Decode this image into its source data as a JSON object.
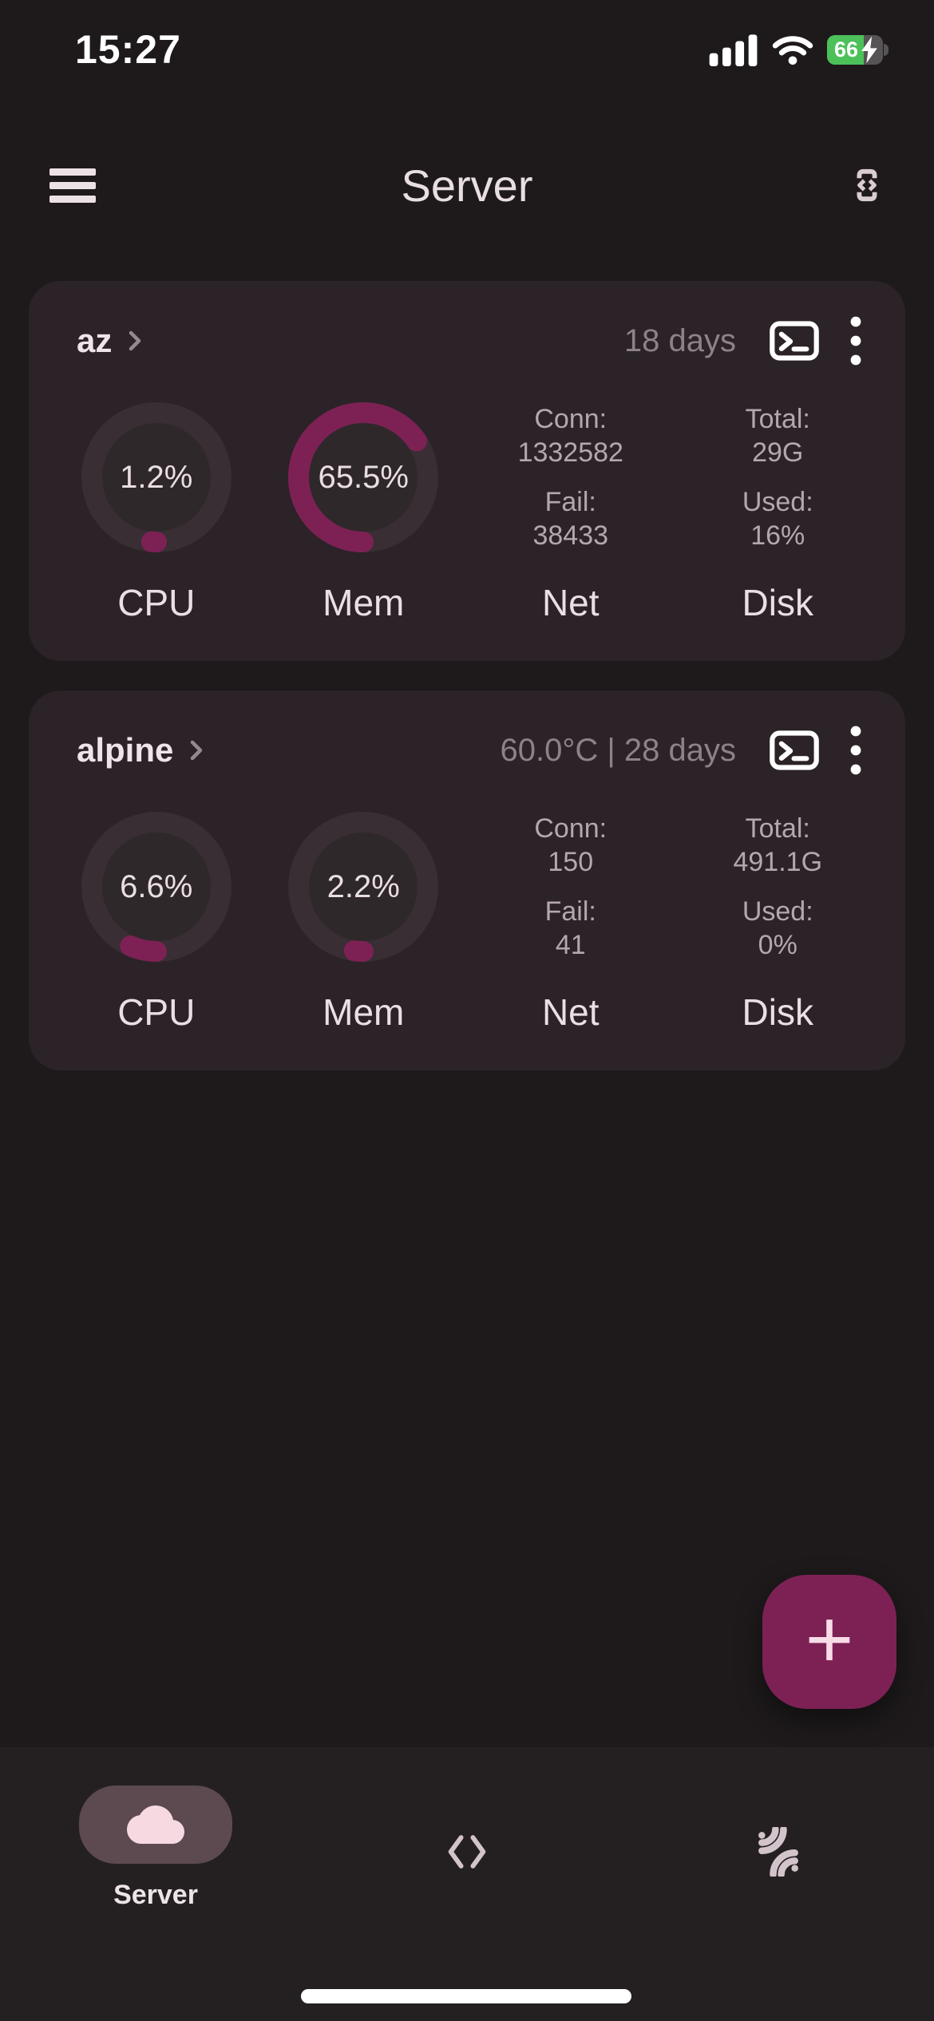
{
  "colors": {
    "accent": "#7d2155",
    "gauge_track": "#382e33",
    "gauge_inner": "#2f282b",
    "battery_green": "#4cc15a"
  },
  "status_bar": {
    "time": "15:27",
    "battery_level": "66"
  },
  "app_bar": {
    "title": "Server"
  },
  "servers": [
    {
      "name": "az",
      "meta": "18 days",
      "cpu": {
        "label": "CPU",
        "value": "1.2%",
        "percent": 1.2
      },
      "mem": {
        "label": "Mem",
        "value": "65.5%",
        "percent": 65.5
      },
      "net": {
        "label": "Net",
        "rows": [
          {
            "k": "Conn:",
            "v": "1332582"
          },
          {
            "k": "Fail:",
            "v": "38433"
          }
        ]
      },
      "disk": {
        "label": "Disk",
        "rows": [
          {
            "k": "Total:",
            "v": "29G"
          },
          {
            "k": "Used:",
            "v": "16%"
          }
        ]
      }
    },
    {
      "name": "alpine",
      "meta": "60.0°C | 28 days",
      "cpu": {
        "label": "CPU",
        "value": "6.6%",
        "percent": 6.6
      },
      "mem": {
        "label": "Mem",
        "value": "2.2%",
        "percent": 2.2
      },
      "net": {
        "label": "Net",
        "rows": [
          {
            "k": "Conn:",
            "v": "150"
          },
          {
            "k": "Fail:",
            "v": "41"
          }
        ]
      },
      "disk": {
        "label": "Disk",
        "rows": [
          {
            "k": "Total:",
            "v": "491.1G"
          },
          {
            "k": "Used:",
            "v": "0%"
          }
        ]
      }
    }
  ],
  "fab": {
    "label": "+"
  },
  "bottom_nav": {
    "items": [
      {
        "label": "Server",
        "icon": "cloud"
      },
      {
        "icon": "code"
      },
      {
        "icon": "ssh-arcs"
      }
    ]
  }
}
